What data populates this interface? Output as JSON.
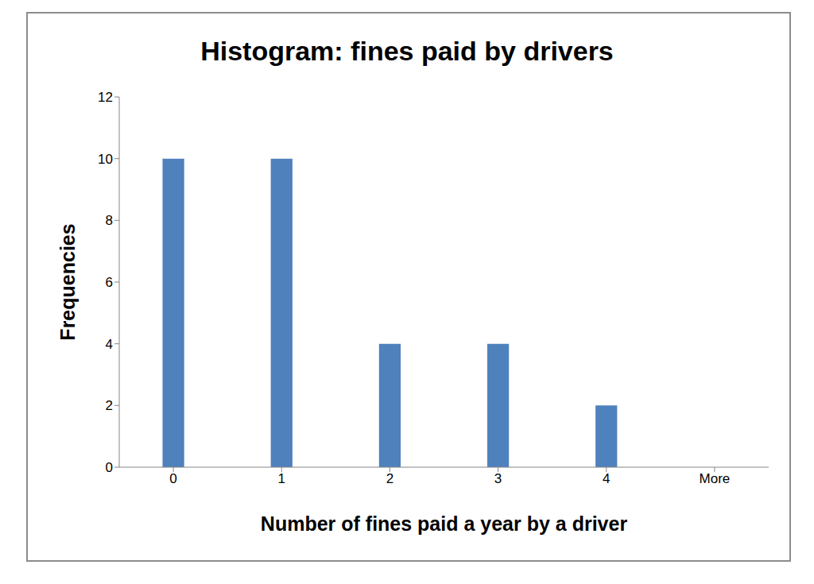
{
  "chart_data": {
    "type": "bar",
    "title": "Histogram: fines paid by drivers",
    "x_label": "Number of fines paid a year by a driver",
    "y_label": "Frequencies",
    "categories": [
      "0",
      "1",
      "2",
      "3",
      "4",
      "More"
    ],
    "values": [
      10,
      10,
      4,
      4,
      2,
      0
    ],
    "color": "#4f81bd",
    "ylim": [
      0,
      12
    ],
    "yticks": [
      0,
      2,
      4,
      6,
      8,
      10,
      12
    ],
    "grid": false
  }
}
